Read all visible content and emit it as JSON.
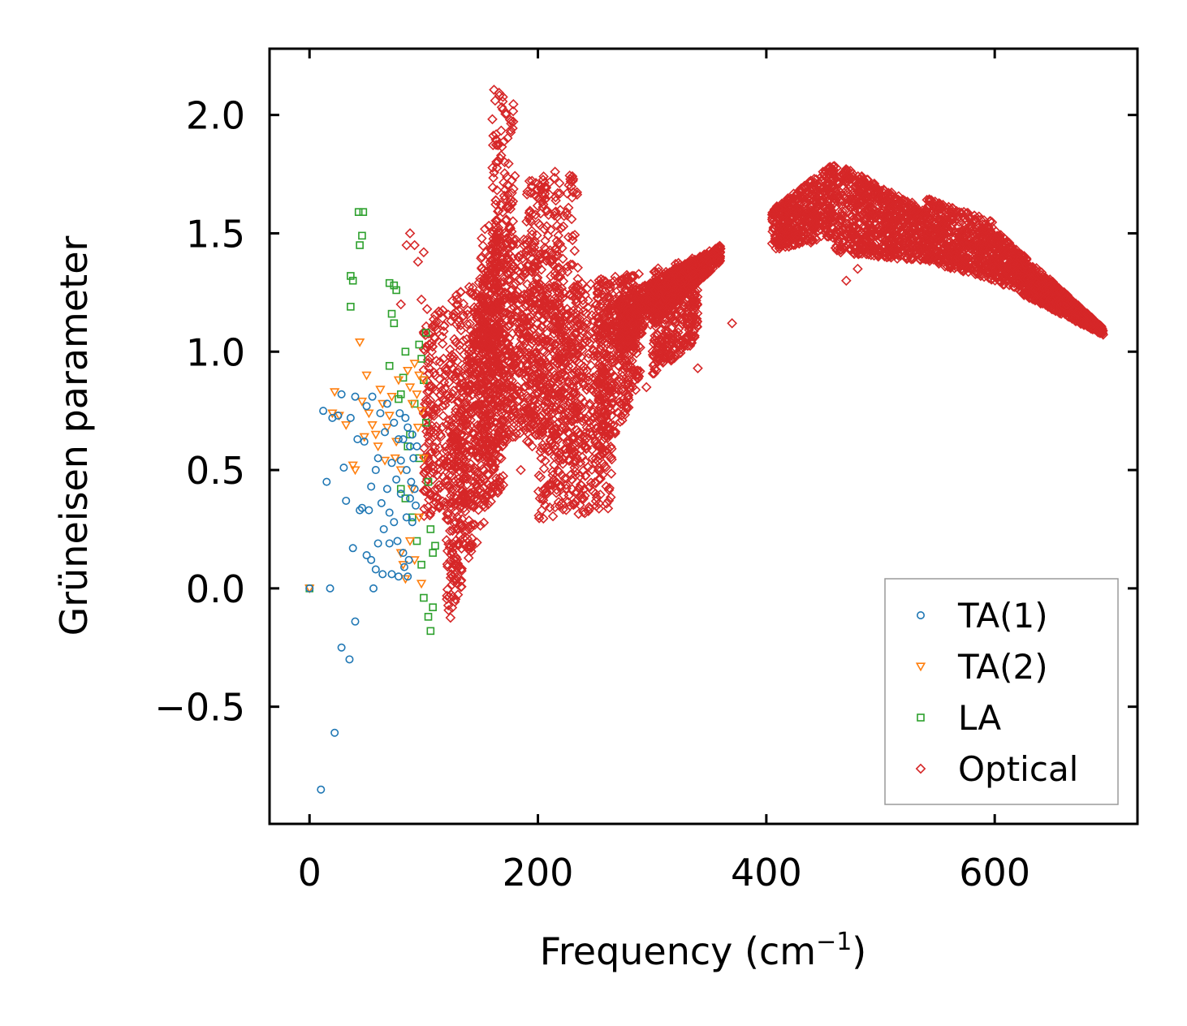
{
  "chart_data": {
    "type": "scatter",
    "title": "",
    "xlabel": "Frequency (cm",
    "xlabel_sup": "−1",
    "xlabel_close": ")",
    "ylabel": "Grüneisen parameter",
    "xlim": [
      -35,
      725
    ],
    "ylim": [
      -0.995,
      2.28
    ],
    "xticks": [
      0,
      200,
      400,
      600
    ],
    "xtick_labels": [
      "0",
      "200",
      "400",
      "600"
    ],
    "yticks": [
      -0.5,
      0.0,
      0.5,
      1.0,
      1.5,
      2.0
    ],
    "ytick_labels": [
      "−0.5",
      "0.0",
      "0.5",
      "1.0",
      "1.5",
      "2.0"
    ],
    "grid": false,
    "legend_position": "lower-right",
    "series": [
      {
        "name": "TA(1)",
        "marker": "circle",
        "color": "#1f77b4",
        "points": [
          [
            0,
            0
          ],
          [
            10,
            -0.85
          ],
          [
            18,
            0
          ],
          [
            22,
            -0.61
          ],
          [
            28,
            -0.25
          ],
          [
            35,
            -0.3
          ],
          [
            40,
            -0.14
          ],
          [
            12,
            0.75
          ],
          [
            15,
            0.45
          ],
          [
            20,
            0.72
          ],
          [
            25,
            0.73
          ],
          [
            28,
            0.82
          ],
          [
            30,
            0.51
          ],
          [
            32,
            0.37
          ],
          [
            36,
            0.72
          ],
          [
            38,
            0.17
          ],
          [
            40,
            0.81
          ],
          [
            42,
            0.63
          ],
          [
            44,
            0.33
          ],
          [
            46,
            0.34
          ],
          [
            48,
            0.62
          ],
          [
            50,
            0.14
          ],
          [
            50,
            0.77
          ],
          [
            52,
            0.33
          ],
          [
            54,
            0.12
          ],
          [
            54,
            0.43
          ],
          [
            55,
            0.81
          ],
          [
            56,
            0.0
          ],
          [
            58,
            0.08
          ],
          [
            58,
            0.5
          ],
          [
            60,
            0.19
          ],
          [
            60,
            0.55
          ],
          [
            62,
            0.74
          ],
          [
            63,
            0.36
          ],
          [
            64,
            0.06
          ],
          [
            65,
            0.25
          ],
          [
            66,
            0.66
          ],
          [
            68,
            0.42
          ],
          [
            68,
            0.78
          ],
          [
            70,
            0.19
          ],
          [
            70,
            0.32
          ],
          [
            72,
            0.53
          ],
          [
            72,
            0.06
          ],
          [
            74,
            0.28
          ],
          [
            74,
            0.7
          ],
          [
            76,
            0.46
          ],
          [
            77,
            0.2
          ],
          [
            78,
            0.05
          ],
          [
            78,
            0.63
          ],
          [
            79,
            0.74
          ],
          [
            80,
            0.4
          ],
          [
            80,
            0.54
          ],
          [
            82,
            0.15
          ],
          [
            82,
            0.63
          ],
          [
            83,
            0.09
          ],
          [
            84,
            0.72
          ],
          [
            85,
            0.3
          ],
          [
            85,
            0.5
          ],
          [
            86,
            0.05
          ],
          [
            86,
            0.68
          ],
          [
            87,
            0.12
          ],
          [
            88,
            0.6
          ],
          [
            88,
            0.38
          ],
          [
            89,
            0.45
          ],
          [
            90,
            0.65
          ],
          [
            90,
            0.28
          ],
          [
            91,
            0.55
          ],
          [
            92,
            0.42
          ],
          [
            93,
            0.35
          ],
          [
            94,
            0.6
          ]
        ]
      },
      {
        "name": "TA(2)",
        "marker": "triangle-down",
        "color": "#ff7f0e",
        "points": [
          [
            0,
            0
          ],
          [
            22,
            0.83
          ],
          [
            20,
            0.74
          ],
          [
            26,
            0.73
          ],
          [
            32,
            0.69
          ],
          [
            38,
            0.52
          ],
          [
            40,
            0.5
          ],
          [
            44,
            1.04
          ],
          [
            46,
            0.79
          ],
          [
            48,
            0.64
          ],
          [
            50,
            0.9
          ],
          [
            52,
            0.74
          ],
          [
            55,
            0.69
          ],
          [
            58,
            0.65
          ],
          [
            60,
            0.6
          ],
          [
            62,
            0.84
          ],
          [
            64,
            0.78
          ],
          [
            66,
            0.54
          ],
          [
            68,
            0.68
          ],
          [
            70,
            0.73
          ],
          [
            72,
            0.81
          ],
          [
            75,
            0.55
          ],
          [
            76,
            0.62
          ],
          [
            78,
            0.88
          ],
          [
            80,
            0.5
          ],
          [
            80,
            0.15
          ],
          [
            82,
            0.1
          ],
          [
            84,
            0.04
          ],
          [
            86,
            0.92
          ],
          [
            88,
            0.85
          ],
          [
            88,
            0.2
          ],
          [
            90,
            0.78
          ],
          [
            90,
            0.42
          ],
          [
            92,
            0.95
          ],
          [
            92,
            0.12
          ],
          [
            94,
            0.82
          ],
          [
            95,
            0.68
          ],
          [
            96,
            0.3
          ],
          [
            96,
            0.9
          ],
          [
            98,
            0.75
          ],
          [
            98,
            0.02
          ],
          [
            100,
            0.88
          ],
          [
            100,
            0.55
          ]
        ]
      },
      {
        "name": "LA",
        "marker": "square",
        "color": "#2ca02c",
        "points": [
          [
            0,
            0
          ],
          [
            36,
            1.32
          ],
          [
            38,
            1.3
          ],
          [
            36,
            1.19
          ],
          [
            43,
            1.59
          ],
          [
            47,
            1.59
          ],
          [
            46,
            1.49
          ],
          [
            44,
            1.45
          ],
          [
            70,
            1.29
          ],
          [
            74,
            1.28
          ],
          [
            72,
            1.16
          ],
          [
            74,
            1.12
          ],
          [
            70,
            0.94
          ],
          [
            76,
            1.26
          ],
          [
            80,
            0.82
          ],
          [
            82,
            0.89
          ],
          [
            84,
            1.0
          ],
          [
            86,
            0.6
          ],
          [
            78,
            0.8
          ],
          [
            80,
            0.42
          ],
          [
            84,
            0.38
          ],
          [
            88,
            0.65
          ],
          [
            90,
            0.3
          ],
          [
            92,
            0.78
          ],
          [
            94,
            0.2
          ],
          [
            96,
            0.55
          ],
          [
            96,
            1.03
          ],
          [
            98,
            0.97
          ],
          [
            98,
            0.1
          ],
          [
            100,
            0.88
          ],
          [
            100,
            -0.04
          ],
          [
            102,
            0.7
          ],
          [
            102,
            1.08
          ],
          [
            104,
            0.45
          ],
          [
            104,
            -0.12
          ],
          [
            106,
            0.25
          ],
          [
            106,
            -0.18
          ],
          [
            108,
            0.15
          ],
          [
            108,
            -0.08
          ],
          [
            110,
            0.18
          ]
        ]
      },
      {
        "name": "Optical",
        "marker": "diamond",
        "color": "#d62728",
        "bands": [
          {
            "x": [
              100,
              170
            ],
            "lo": [
              0.3,
              0.4
            ],
            "hi": [
              1.15,
              1.4
            ]
          },
          {
            "x": [
              120,
              165
            ],
            "lo": [
              -0.18,
              0.45
            ],
            "hi": [
              0.6,
              1.6
            ]
          },
          {
            "x": [
              160,
              180
            ],
            "lo": [
              0.55,
              0.7
            ],
            "hi": [
              2.12,
              2.05
            ]
          },
          {
            "x": [
              150,
              200
            ],
            "lo": [
              0.55,
              0.7
            ],
            "hi": [
              1.55,
              1.45
            ]
          },
          {
            "x": [
              190,
              235
            ],
            "lo": [
              0.6,
              0.5
            ],
            "hi": [
              1.72,
              1.75
            ]
          },
          {
            "x": [
              200,
              265
            ],
            "lo": [
              0.28,
              0.34
            ],
            "hi": [
              1.28,
              1.3
            ]
          },
          {
            "x": [
              250,
              290
            ],
            "lo": [
              0.5,
              0.85
            ],
            "hi": [
              1.3,
              1.35
            ]
          },
          {
            "x": [
              270,
              360
            ],
            "lo": [
              0.98,
              1.38
            ],
            "hi": [
              1.22,
              1.45
            ]
          },
          {
            "x": [
              300,
              340
            ],
            "lo": [
              0.9,
              1.05
            ],
            "hi": [
              1.35,
              1.4
            ]
          },
          {
            "x": [
              405,
              460
            ],
            "lo": [
              1.43,
              1.48
            ],
            "hi": [
              1.6,
              1.8
            ]
          },
          {
            "x": [
              460,
              540
            ],
            "lo": [
              1.42,
              1.38
            ],
            "hi": [
              1.8,
              1.6
            ]
          },
          {
            "x": [
              540,
              600
            ],
            "lo": [
              1.38,
              1.3
            ],
            "hi": [
              1.65,
              1.55
            ]
          },
          {
            "x": [
              600,
              695
            ],
            "lo": [
              1.3,
              1.07
            ],
            "hi": [
              1.52,
              1.1
            ]
          }
        ],
        "points": [
          [
            80,
            1.2
          ],
          [
            85,
            1.45
          ],
          [
            88,
            1.5
          ],
          [
            92,
            1.45
          ],
          [
            95,
            1.38
          ],
          [
            100,
            1.42
          ],
          [
            98,
            1.22
          ],
          [
            103,
            1.18
          ],
          [
            110,
            0.9
          ],
          [
            115,
            0.5
          ],
          [
            118,
            0.35
          ],
          [
            125,
            0.05
          ],
          [
            130,
            0.25
          ],
          [
            135,
            0.48
          ],
          [
            145,
            0.4
          ],
          [
            152,
            0.38
          ],
          [
            165,
            0.65
          ],
          [
            175,
            0.8
          ],
          [
            185,
            0.5
          ],
          [
            195,
            0.6
          ],
          [
            205,
            1.74
          ],
          [
            215,
            1.76
          ],
          [
            240,
            1.2
          ],
          [
            275,
            0.8
          ],
          [
            285,
            0.88
          ],
          [
            295,
            0.85
          ],
          [
            325,
            1.32
          ],
          [
            340,
            0.93
          ],
          [
            350,
            1.38
          ],
          [
            370,
            1.12
          ],
          [
            470,
            1.3
          ],
          [
            480,
            1.35
          ],
          [
            500,
            1.42
          ],
          [
            520,
            1.45
          ],
          [
            560,
            1.4
          ]
        ]
      }
    ]
  }
}
